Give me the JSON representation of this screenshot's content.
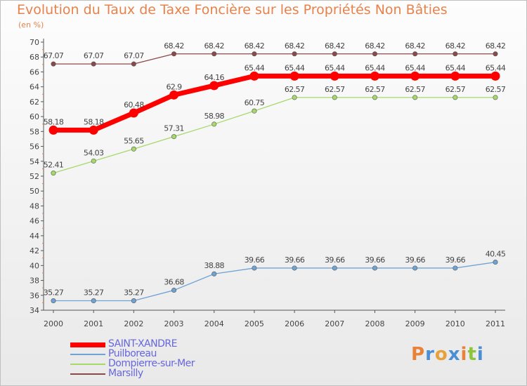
{
  "title": "Evolution du Taux de Taxe Foncière sur les Propriétés Non Bâties",
  "unit": "(en %)",
  "logo": {
    "letters": [
      "P",
      "r",
      "o",
      "x",
      "i",
      "t",
      "i"
    ],
    "colors": [
      "#e8823a",
      "#4a8fd6",
      "#e8a13a",
      "#4a8fd6",
      "#e8823a",
      "#8cc43a",
      "#4a8fd6"
    ]
  },
  "chart_data": {
    "type": "line",
    "title": "Evolution du Taux de Taxe Foncière sur les Propriétés Non Bâties",
    "ylabel": "(en %)",
    "xlabel": "",
    "x": [
      "2000",
      "2001",
      "2002",
      "2003",
      "2004",
      "2005",
      "2006",
      "2007",
      "2008",
      "2009",
      "2010",
      "2011"
    ],
    "ylim": [
      34,
      70
    ],
    "yticks": [
      "34",
      "36",
      "38",
      "40",
      "42",
      "44",
      "46",
      "48",
      "50",
      "52",
      "54",
      "56",
      "58",
      "60",
      "62",
      "64",
      "66",
      "68",
      "70"
    ],
    "grid": false,
    "legend": "bottom-left",
    "series": [
      {
        "name": "SAINT-XANDRE",
        "color": "#ff0000",
        "emphasis": true,
        "values": [
          58.18,
          58.18,
          60.48,
          62.9,
          64.16,
          65.44,
          65.44,
          65.44,
          65.44,
          65.44,
          65.44,
          65.44
        ],
        "labels": [
          "58.18",
          "58.18",
          "60.48",
          "62.9",
          "64.16",
          "65.44",
          "65.44",
          "65.44",
          "65.44",
          "65.44",
          "65.44",
          "65.44"
        ]
      },
      {
        "name": "Puilboreau",
        "color": "#6fa3d3",
        "values": [
          35.27,
          35.27,
          35.27,
          36.68,
          38.88,
          39.66,
          39.66,
          39.66,
          39.66,
          39.66,
          39.66,
          40.45
        ],
        "labels": [
          "35.27",
          "35.27",
          "35.27",
          "36.68",
          "38.88",
          "39.66",
          "39.66",
          "39.66",
          "39.66",
          "39.66",
          "39.66",
          "40.45"
        ]
      },
      {
        "name": "Dompierre-sur-Mer",
        "color": "#a6d96a",
        "values": [
          52.41,
          54.03,
          55.65,
          57.31,
          58.98,
          60.75,
          62.57,
          62.57,
          62.57,
          62.57,
          62.57,
          62.57
        ],
        "labels": [
          "52.41",
          "54.03",
          "55.65",
          "57.31",
          "58.98",
          "60.75",
          "62.57",
          "62.57",
          "62.57",
          "62.57",
          "62.57",
          "62.57"
        ]
      },
      {
        "name": "Marsilly",
        "color": "#8b4a4a",
        "values": [
          67.07,
          67.07,
          67.07,
          68.42,
          68.42,
          68.42,
          68.42,
          68.42,
          68.42,
          68.42,
          68.42,
          68.42
        ],
        "labels": [
          "67.07",
          "67.07",
          "67.07",
          "68.42",
          "68.42",
          "68.42",
          "68.42",
          "68.42",
          "68.42",
          "68.42",
          "68.42",
          "68.42"
        ]
      }
    ]
  }
}
